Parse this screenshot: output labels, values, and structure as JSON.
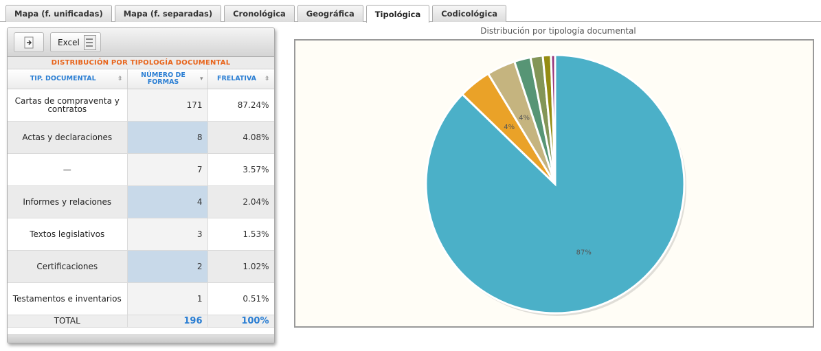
{
  "tabs": [
    {
      "label": "Mapa (f. unificadas)",
      "active": false
    },
    {
      "label": "Mapa (f. separadas)",
      "active": false
    },
    {
      "label": "Cronológica",
      "active": false
    },
    {
      "label": "Geográfica",
      "active": false
    },
    {
      "label": "Tipológica",
      "active": true
    },
    {
      "label": "Codicológica",
      "active": false
    }
  ],
  "toolbar": {
    "export_icon": "export-arrow-icon",
    "excel_label": "Excel",
    "excel_icon": "spreadsheet-icon"
  },
  "table": {
    "caption": "DISTRIBUCIÓN POR TIPOLOGÍA DOCUMENTAL",
    "headers": [
      "TIP. DOCUMENTAL",
      "NÚMERO DE FORMAS",
      "FRELATIVA"
    ],
    "rows": [
      {
        "tipo": "Cartas de compraventa y contratos",
        "numero": "171",
        "frelativa": "87.24%"
      },
      {
        "tipo": "Actas y declaraciones",
        "numero": "8",
        "frelativa": "4.08%"
      },
      {
        "tipo": "—",
        "numero": "7",
        "frelativa": "3.57%"
      },
      {
        "tipo": "Informes y relaciones",
        "numero": "4",
        "frelativa": "2.04%"
      },
      {
        "tipo": "Textos legislativos",
        "numero": "3",
        "frelativa": "1.53%"
      },
      {
        "tipo": "Certificaciones",
        "numero": "2",
        "frelativa": "1.02%"
      },
      {
        "tipo": "Testamentos e inventarios",
        "numero": "1",
        "frelativa": "0.51%"
      }
    ],
    "total": {
      "label": "TOTAL",
      "numero": "196",
      "frelativa": "100%"
    }
  },
  "chart_data": {
    "type": "pie",
    "title": "Distribución por tipología documental",
    "categories": [
      "Cartas de compraventa y contratos",
      "Actas y declaraciones",
      "—",
      "Informes y relaciones",
      "Textos legislativos",
      "Certificaciones",
      "Testamentos e inventarios"
    ],
    "values": [
      171,
      8,
      7,
      4,
      3,
      2,
      1
    ],
    "slice_labels": [
      "87%",
      "4%",
      "4%",
      "",
      "",
      "",
      ""
    ],
    "colors": [
      "#4bb0c8",
      "#eaa228",
      "#c5b47f",
      "#579575",
      "#839557",
      "#958c12",
      "#953579"
    ],
    "legend": false
  }
}
